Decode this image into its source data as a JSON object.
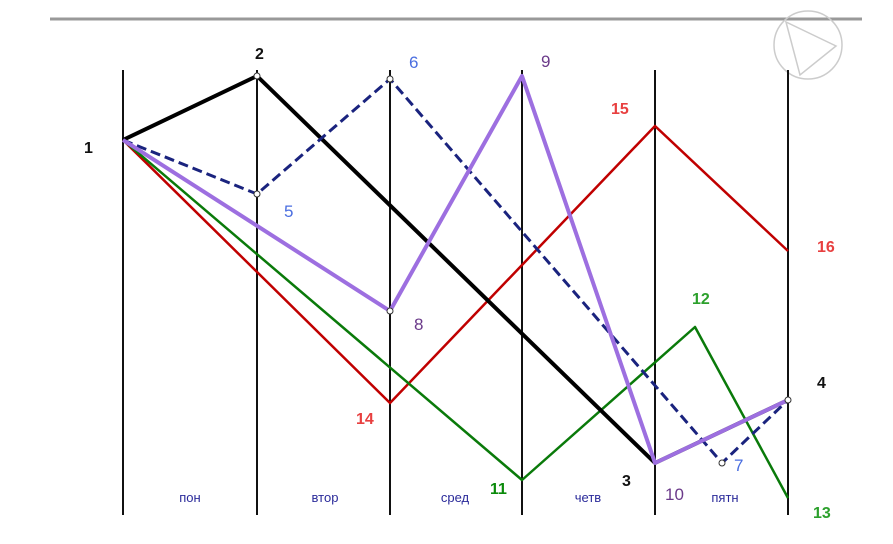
{
  "point_labels": [
    "1",
    "2",
    "3",
    "4",
    "5",
    "6",
    "7",
    "8",
    "9",
    "10",
    "11",
    "12",
    "13",
    "14",
    "15",
    "16"
  ],
  "days": [
    "пон",
    "втор",
    "сред",
    "четв",
    "пятн"
  ]
}
